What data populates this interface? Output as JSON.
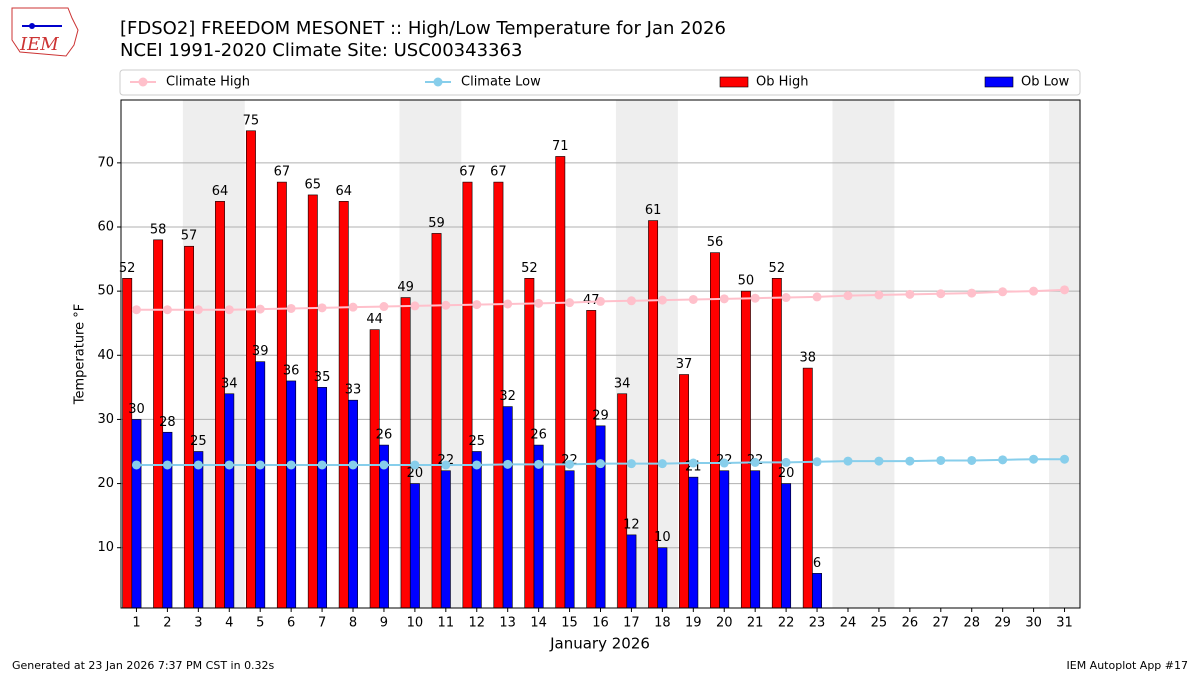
{
  "logo_text": "IEM",
  "footer_left": "Generated at 23 Jan 2026 7:37 PM CST in 0.32s",
  "footer_right": "IEM Autoplot App #17",
  "chart_data": {
    "type": "bar",
    "title": "[FDSO2] FREEDOM MESONET :: High/Low Temperature for Jan 2026",
    "subtitle": "NCEI 1991-2020 Climate Site: USC00343363",
    "x_label": "January 2026",
    "y_label": "Temperature °F",
    "categories": [
      "1",
      "2",
      "3",
      "4",
      "5",
      "6",
      "7",
      "8",
      "9",
      "10",
      "11",
      "12",
      "13",
      "14",
      "15",
      "16",
      "17",
      "18",
      "19",
      "20",
      "21",
      "22",
      "23",
      "24",
      "25",
      "26",
      "27",
      "28",
      "29",
      "30",
      "31"
    ],
    "series": [
      {
        "name": "Climate High",
        "type": "line",
        "color": "#ffc0cb",
        "values": [
          47.1,
          47.1,
          47.1,
          47.1,
          47.2,
          47.3,
          47.4,
          47.5,
          47.6,
          47.7,
          47.8,
          47.9,
          48.0,
          48.1,
          48.2,
          48.4,
          48.5,
          48.6,
          48.7,
          48.8,
          48.9,
          49.0,
          49.1,
          49.3,
          49.4,
          49.5,
          49.6,
          49.7,
          49.9,
          50.0,
          50.2
        ]
      },
      {
        "name": "Climate Low",
        "type": "line",
        "color": "#87ceeb",
        "values": [
          22.9,
          22.9,
          22.9,
          22.9,
          22.9,
          22.9,
          22.9,
          22.9,
          22.9,
          22.9,
          22.9,
          22.9,
          23.0,
          23.0,
          23.0,
          23.1,
          23.1,
          23.1,
          23.2,
          23.2,
          23.3,
          23.3,
          23.4,
          23.5,
          23.5,
          23.5,
          23.6,
          23.6,
          23.7,
          23.8,
          23.8
        ]
      },
      {
        "name": "Ob High",
        "type": "bar",
        "color": "#ff0000",
        "values": [
          52,
          58,
          57,
          64,
          75,
          67,
          65,
          64,
          44,
          49,
          59,
          67,
          67,
          52,
          71,
          47,
          34,
          61,
          37,
          56,
          50,
          52,
          38,
          null,
          null,
          null,
          null,
          null,
          null,
          null,
          null
        ]
      },
      {
        "name": "Ob Low",
        "type": "bar",
        "color": "#0000ff",
        "values": [
          30,
          28,
          25,
          34,
          39,
          36,
          35,
          33,
          26,
          20,
          22,
          25,
          32,
          26,
          22,
          29,
          12,
          10,
          21,
          22,
          22,
          20,
          6,
          null,
          null,
          null,
          null,
          null,
          null,
          null,
          null
        ]
      }
    ],
    "ylim": [
      0.6,
      79.8
    ],
    "yticks": [
      10,
      20,
      30,
      40,
      50,
      60,
      70
    ],
    "grid": true
  }
}
